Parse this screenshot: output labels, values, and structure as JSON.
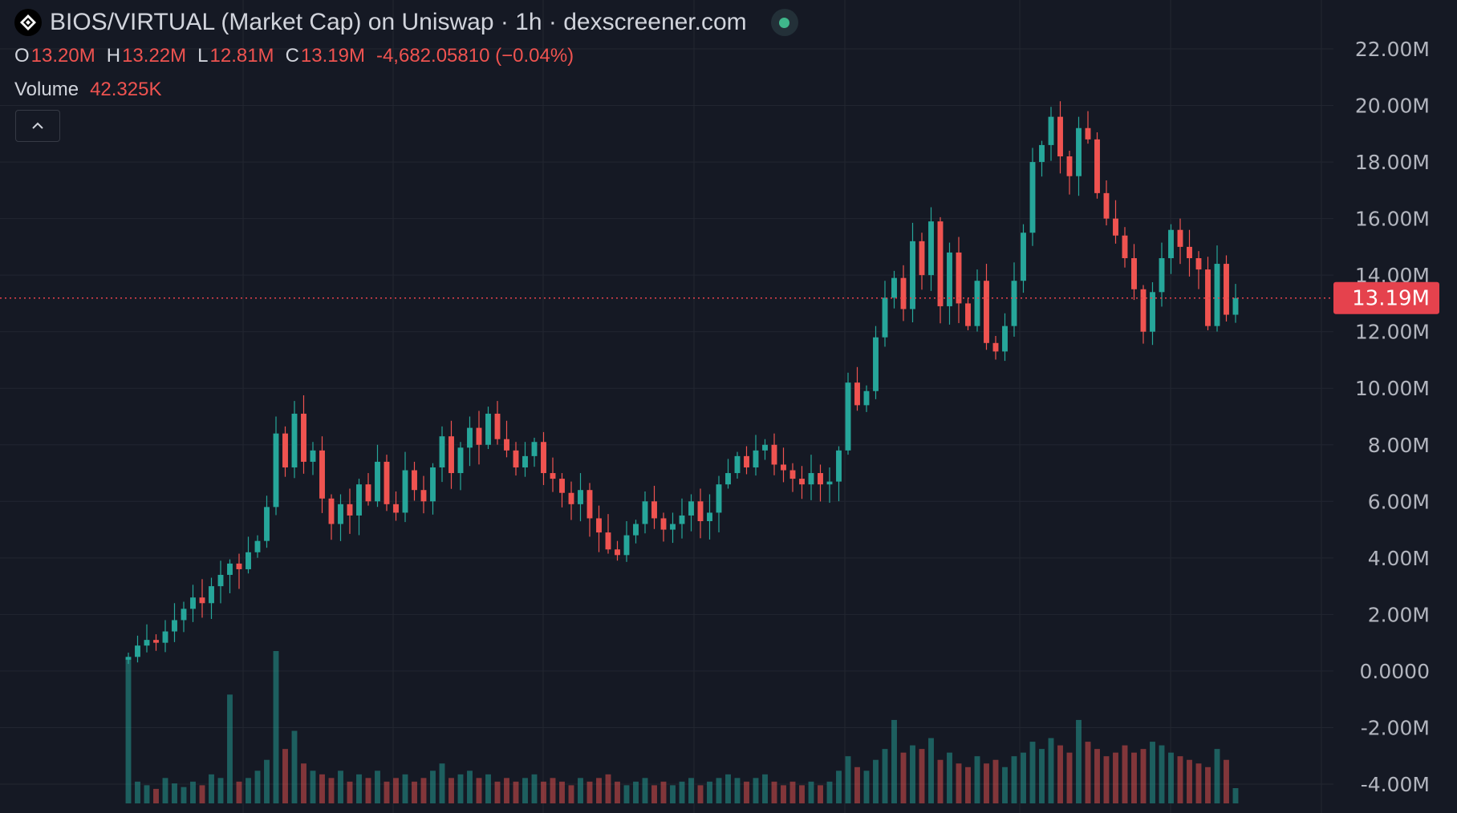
{
  "header": {
    "title": "BIOS/VIRTUAL (Market Cap) on Uniswap · 1h · dexscreener.com",
    "status_color": "#3fb68b",
    "ohlc": [
      {
        "key": "O",
        "value": "13.20M"
      },
      {
        "key": "H",
        "value": "13.22M"
      },
      {
        "key": "L",
        "value": "12.81M"
      },
      {
        "key": "C",
        "value": "13.19M"
      }
    ],
    "change": "-4,682.05810 (−0.04%)",
    "volume_label": "Volume",
    "volume_value": "42.325K",
    "collapse_icon": "chevron-up-icon"
  },
  "colors": {
    "up": "#26a69a",
    "down": "#ef5350",
    "background": "#151924",
    "grid": "#222631",
    "last_price": "#e5424d"
  },
  "chart_data": {
    "type": "candlestick",
    "title": "BIOS/VIRTUAL (Market Cap) on Uniswap · 1h · dexscreener.com",
    "y_ticks": [
      "22.00M",
      "20.00M",
      "18.00M",
      "16.00M",
      "14.00M",
      "12.00M",
      "10.00M",
      "8.00M",
      "6.00M",
      "4.00M",
      "2.00M",
      "0.0000",
      "-2.00M",
      "-4.00M"
    ],
    "ylim_millions": [
      -4,
      22
    ],
    "grid": true,
    "last_price": 13.19,
    "last_price_label": "13.19M",
    "close_millions": [
      0.5,
      0.9,
      1.1,
      1.0,
      1.4,
      1.8,
      2.2,
      2.6,
      2.4,
      3.0,
      3.4,
      3.8,
      3.6,
      4.2,
      4.6,
      5.8,
      8.4,
      7.2,
      9.1,
      7.4,
      7.8,
      6.1,
      5.2,
      5.9,
      5.5,
      6.6,
      6.0,
      7.4,
      5.9,
      5.6,
      7.1,
      6.4,
      6.0,
      7.2,
      8.3,
      7.0,
      7.9,
      8.6,
      8.0,
      9.1,
      8.2,
      7.8,
      7.2,
      7.6,
      8.1,
      7.0,
      6.8,
      6.3,
      5.9,
      6.4,
      5.4,
      4.9,
      4.3,
      4.1,
      4.8,
      5.2,
      6.0,
      5.4,
      5.0,
      5.2,
      5.5,
      6.0,
      5.3,
      5.6,
      6.6,
      7.0,
      7.6,
      7.2,
      7.8,
      8.0,
      7.3,
      7.1,
      6.8,
      6.6,
      7.0,
      6.6,
      6.7,
      7.8,
      10.2,
      9.4,
      9.9,
      11.8,
      13.2,
      13.9,
      12.8,
      15.2,
      14.0,
      15.9,
      12.9,
      14.8,
      13.0,
      12.2,
      13.8,
      11.6,
      11.3,
      12.2,
      13.8,
      15.5,
      18.0,
      18.6,
      19.6,
      18.2,
      17.5,
      19.2,
      18.8,
      16.9,
      16.0,
      15.4,
      14.6,
      13.5,
      12.0,
      13.4,
      14.6,
      15.6,
      15.0,
      14.6,
      14.2,
      12.2,
      14.4,
      12.6,
      13.19
    ],
    "volume_k": [
      400,
      60,
      50,
      40,
      70,
      55,
      45,
      60,
      50,
      80,
      70,
      300,
      60,
      70,
      90,
      120,
      420,
      150,
      200,
      110,
      90,
      80,
      70,
      90,
      60,
      80,
      70,
      90,
      60,
      70,
      80,
      60,
      70,
      90,
      110,
      70,
      80,
      90,
      70,
      80,
      60,
      70,
      60,
      70,
      80,
      60,
      70,
      60,
      50,
      70,
      60,
      70,
      80,
      60,
      50,
      60,
      70,
      50,
      60,
      50,
      60,
      70,
      50,
      60,
      70,
      80,
      70,
      60,
      70,
      80,
      60,
      50,
      60,
      50,
      60,
      50,
      60,
      90,
      130,
      100,
      90,
      120,
      150,
      230,
      140,
      160,
      150,
      180,
      120,
      140,
      110,
      100,
      130,
      110,
      120,
      100,
      130,
      140,
      170,
      150,
      180,
      160,
      140,
      230,
      170,
      150,
      130,
      140,
      160,
      140,
      150,
      170,
      160,
      140,
      130,
      120,
      110,
      100,
      150,
      120,
      42
    ]
  }
}
